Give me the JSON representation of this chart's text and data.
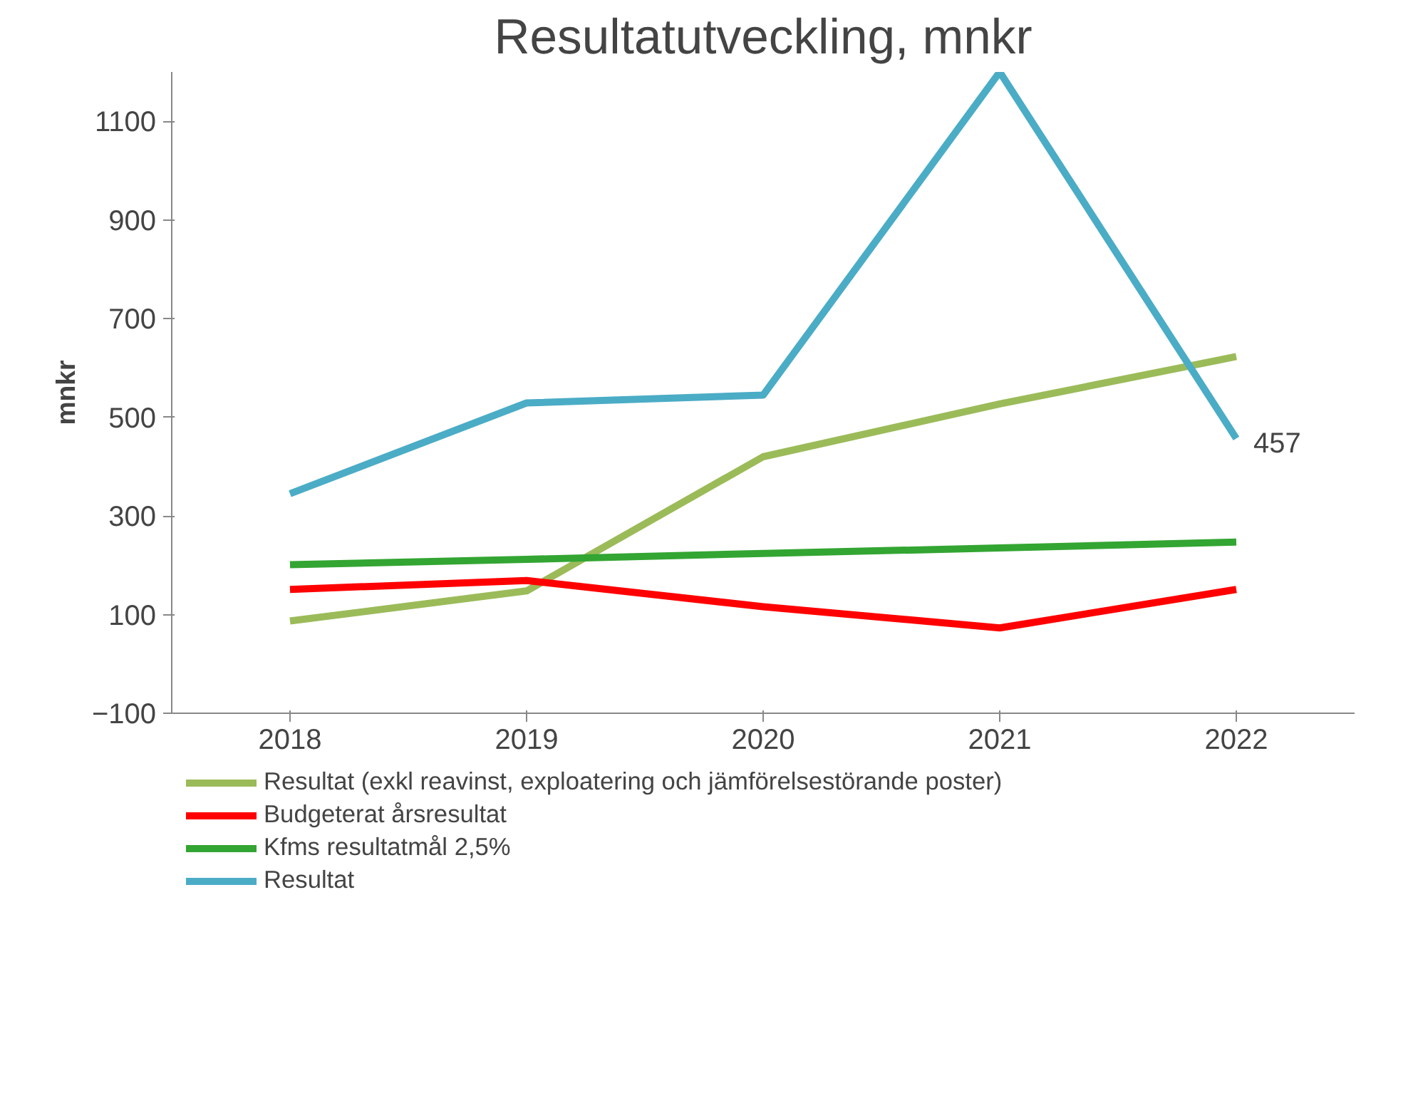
{
  "chart_data": {
    "type": "line",
    "title": "Resultatutveckling, mnkr",
    "ylabel": "mnkr",
    "categories": [
      "2018",
      "2019",
      "2020",
      "2021",
      "2022"
    ],
    "ylim": [
      -100,
      1200
    ],
    "yticks": [
      -100,
      100,
      300,
      500,
      700,
      900,
      1100
    ],
    "grid": false,
    "legend": "bottom",
    "marker": "none",
    "line_style": "solid",
    "series": [
      {
        "name": "Resultat (exkl reavinst, exploatering och jämförelsestörande poster)",
        "color": "#9bbb59",
        "values": [
          87,
          148,
          420,
          527,
          623
        ]
      },
      {
        "name": "Budgeterat årsresultat",
        "color": "#ff0000",
        "values": [
          151,
          169,
          116,
          73,
          151
        ]
      },
      {
        "name": "Kfms resultatmål 2,5%",
        "color": "#33a532",
        "values": [
          201,
          212,
          224,
          235,
          247
        ]
      },
      {
        "name": "Resultat",
        "color": "#4bacc6",
        "values": [
          345,
          529,
          545,
          1200,
          457
        ]
      }
    ],
    "annotations": [
      {
        "text": "457",
        "x": "2022",
        "y": 457
      }
    ]
  }
}
